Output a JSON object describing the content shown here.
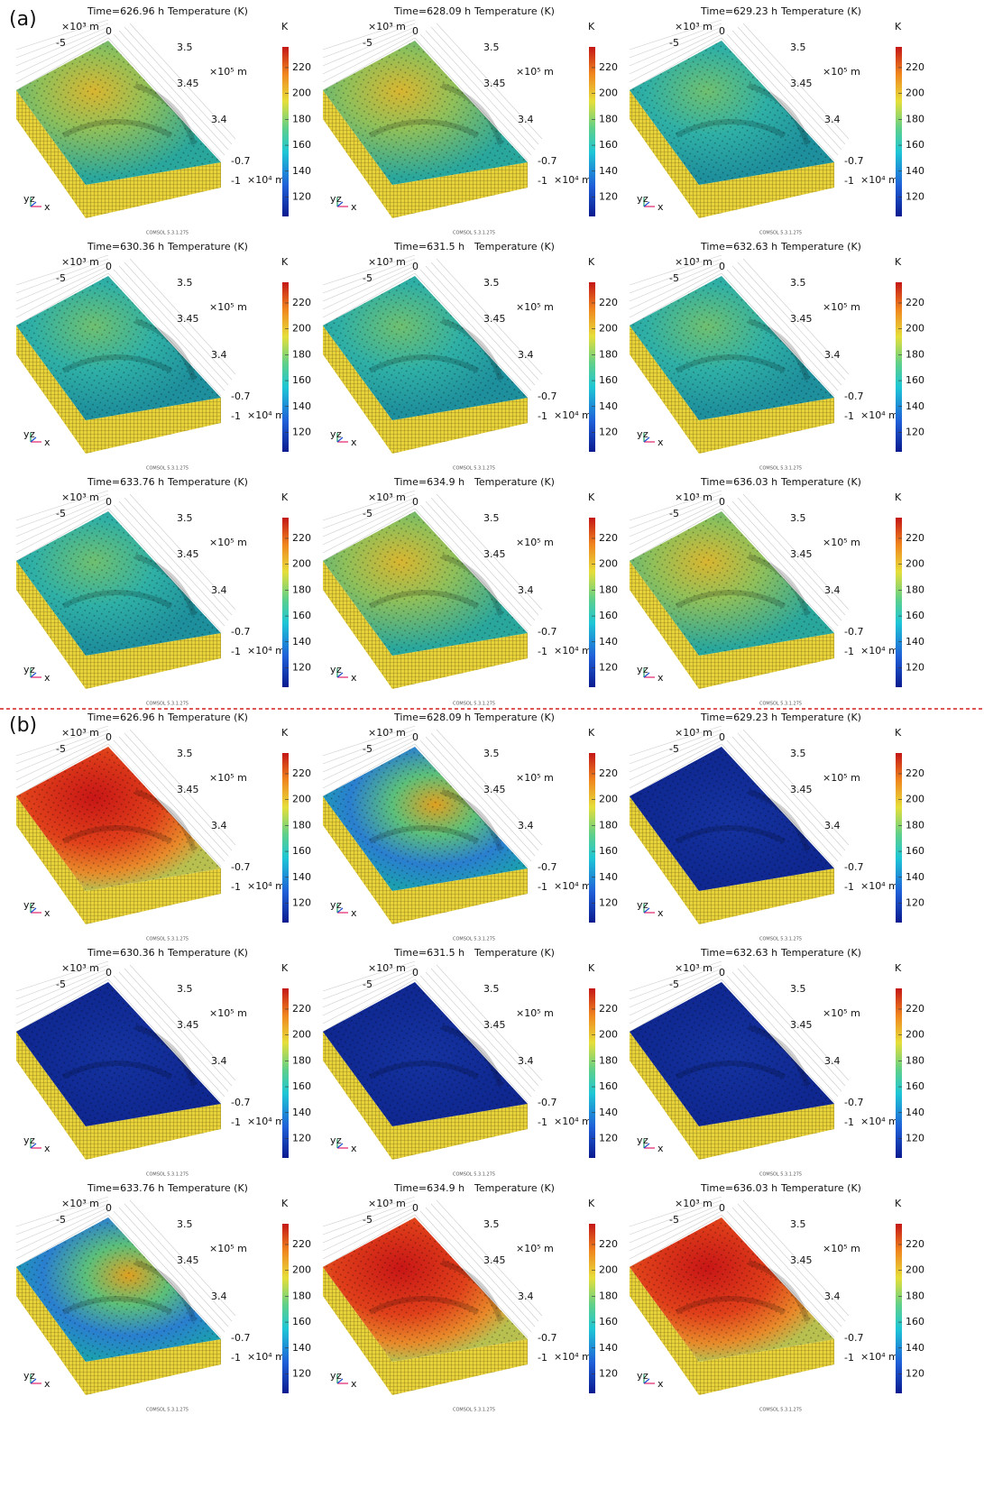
{
  "panels": [
    {
      "label": "(a)",
      "plots": [
        {
          "time": "Time=626.96 h"
        },
        {
          "time": "Time=628.09 h"
        },
        {
          "time": "Time=629.23 h"
        },
        {
          "time": "Time=630.36 h"
        },
        {
          "time": "Time=631.5 h"
        },
        {
          "time": "Time=632.63 h"
        },
        {
          "time": "Time=633.76 h"
        },
        {
          "time": "Time=634.9 h"
        },
        {
          "time": "Time=636.03 h"
        }
      ]
    },
    {
      "label": "(b)",
      "plots": [
        {
          "time": "Time=626.96 h"
        },
        {
          "time": "Time=628.09 h"
        },
        {
          "time": "Time=629.23 h"
        },
        {
          "time": "Time=630.36 h"
        },
        {
          "time": "Time=631.5 h"
        },
        {
          "time": "Time=632.63 h"
        },
        {
          "time": "Time=633.76 h"
        },
        {
          "time": "Time=634.9 h"
        },
        {
          "time": "Time=636.03 h"
        }
      ]
    }
  ],
  "plot_common": {
    "quantity": "Temperature (K)",
    "x_scale": "×10³ m",
    "x_ticks": [
      "-5",
      "0"
    ],
    "y_scale": "×10⁵ m",
    "y_ticks": [
      "3.5",
      "3.45",
      "3.4"
    ],
    "z_scale": "×10⁴ m",
    "z_ticks": [
      "-0.7",
      "-1"
    ],
    "triad": [
      "y",
      "z",
      "x"
    ],
    "software": "COMSOL 5.3.1.275",
    "colorbar": {
      "unit": "K",
      "lim": [
        105,
        236
      ],
      "ticks": [
        120,
        140,
        160,
        180,
        200,
        220
      ]
    }
  }
}
